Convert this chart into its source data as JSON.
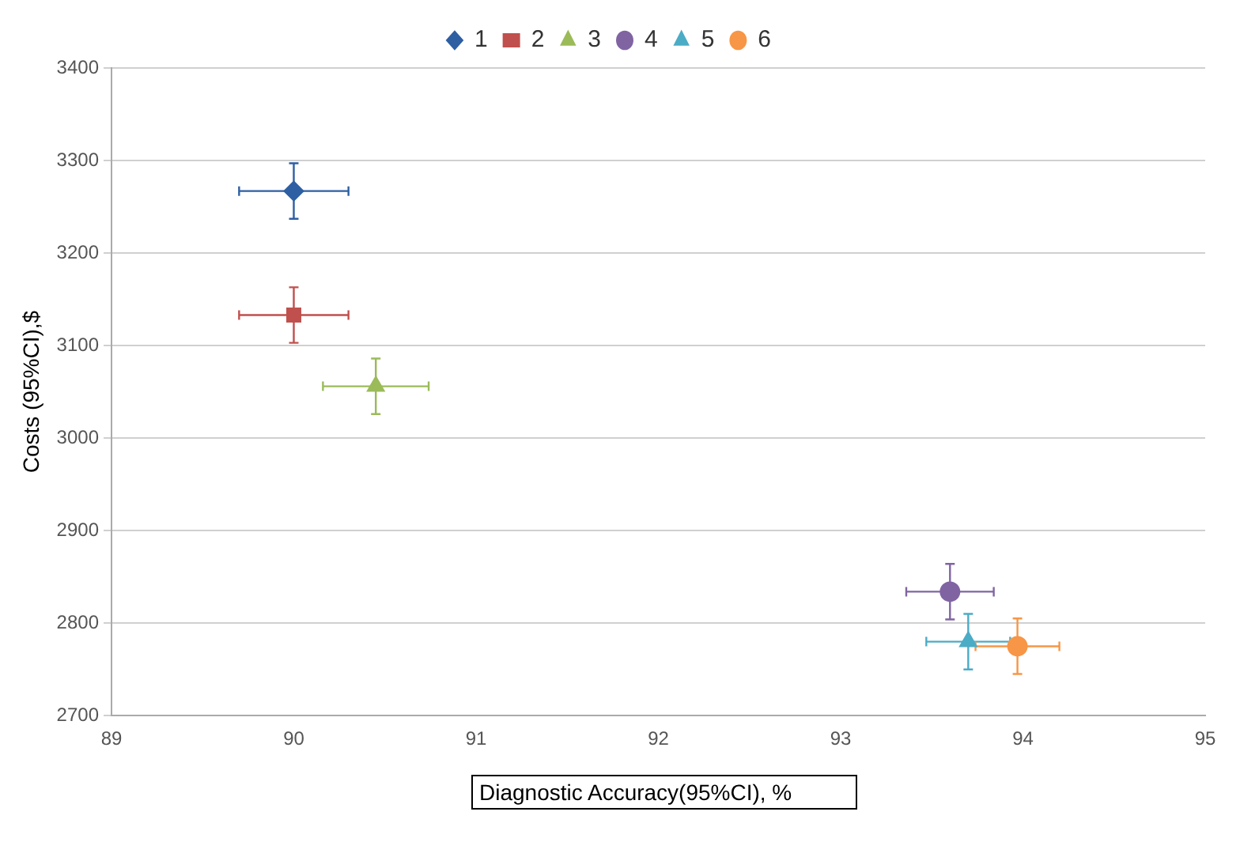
{
  "chart_data": {
    "type": "scatter",
    "xlabel": "Diagnostic Accuracy(95%CI), %",
    "ylabel": "Costs (95%CI),$",
    "xlim": [
      89,
      95
    ],
    "xticks": [
      89,
      90,
      91,
      92,
      93,
      94,
      95
    ],
    "ylim": [
      2700,
      3400
    ],
    "yticks": [
      2700,
      2800,
      2900,
      3000,
      3100,
      3200,
      3300,
      3400
    ],
    "grid": "y",
    "legend": "top",
    "series": [
      {
        "name": "1",
        "color": "#2e5fa3",
        "marker": "diamond",
        "x": [
          90.0
        ],
        "values": [
          3267
        ],
        "errors": [
          30
        ],
        "xerrors": [
          0.3
        ]
      },
      {
        "name": "2",
        "color": "#c0504d",
        "marker": "square",
        "x": [
          90.0
        ],
        "values": [
          3133
        ],
        "errors": [
          30
        ],
        "xerrors": [
          0.3
        ]
      },
      {
        "name": "3",
        "color": "#9bbb59",
        "marker": "triangle",
        "x": [
          90.45
        ],
        "values": [
          3056
        ],
        "errors": [
          30
        ],
        "xerrors": [
          0.29
        ]
      },
      {
        "name": "4",
        "color": "#8064a2",
        "marker": "circle",
        "x": [
          93.6
        ],
        "values": [
          2834
        ],
        "errors": [
          30
        ],
        "xerrors": [
          0.24
        ]
      },
      {
        "name": "5",
        "color": "#4bacc6",
        "marker": "triangle",
        "x": [
          93.7
        ],
        "values": [
          2780
        ],
        "errors": [
          30
        ],
        "xerrors": [
          0.23
        ]
      },
      {
        "name": "6",
        "color": "#f79646",
        "marker": "circle",
        "x": [
          93.97
        ],
        "values": [
          2775
        ],
        "errors": [
          30
        ],
        "xerrors": [
          0.23
        ]
      }
    ]
  }
}
